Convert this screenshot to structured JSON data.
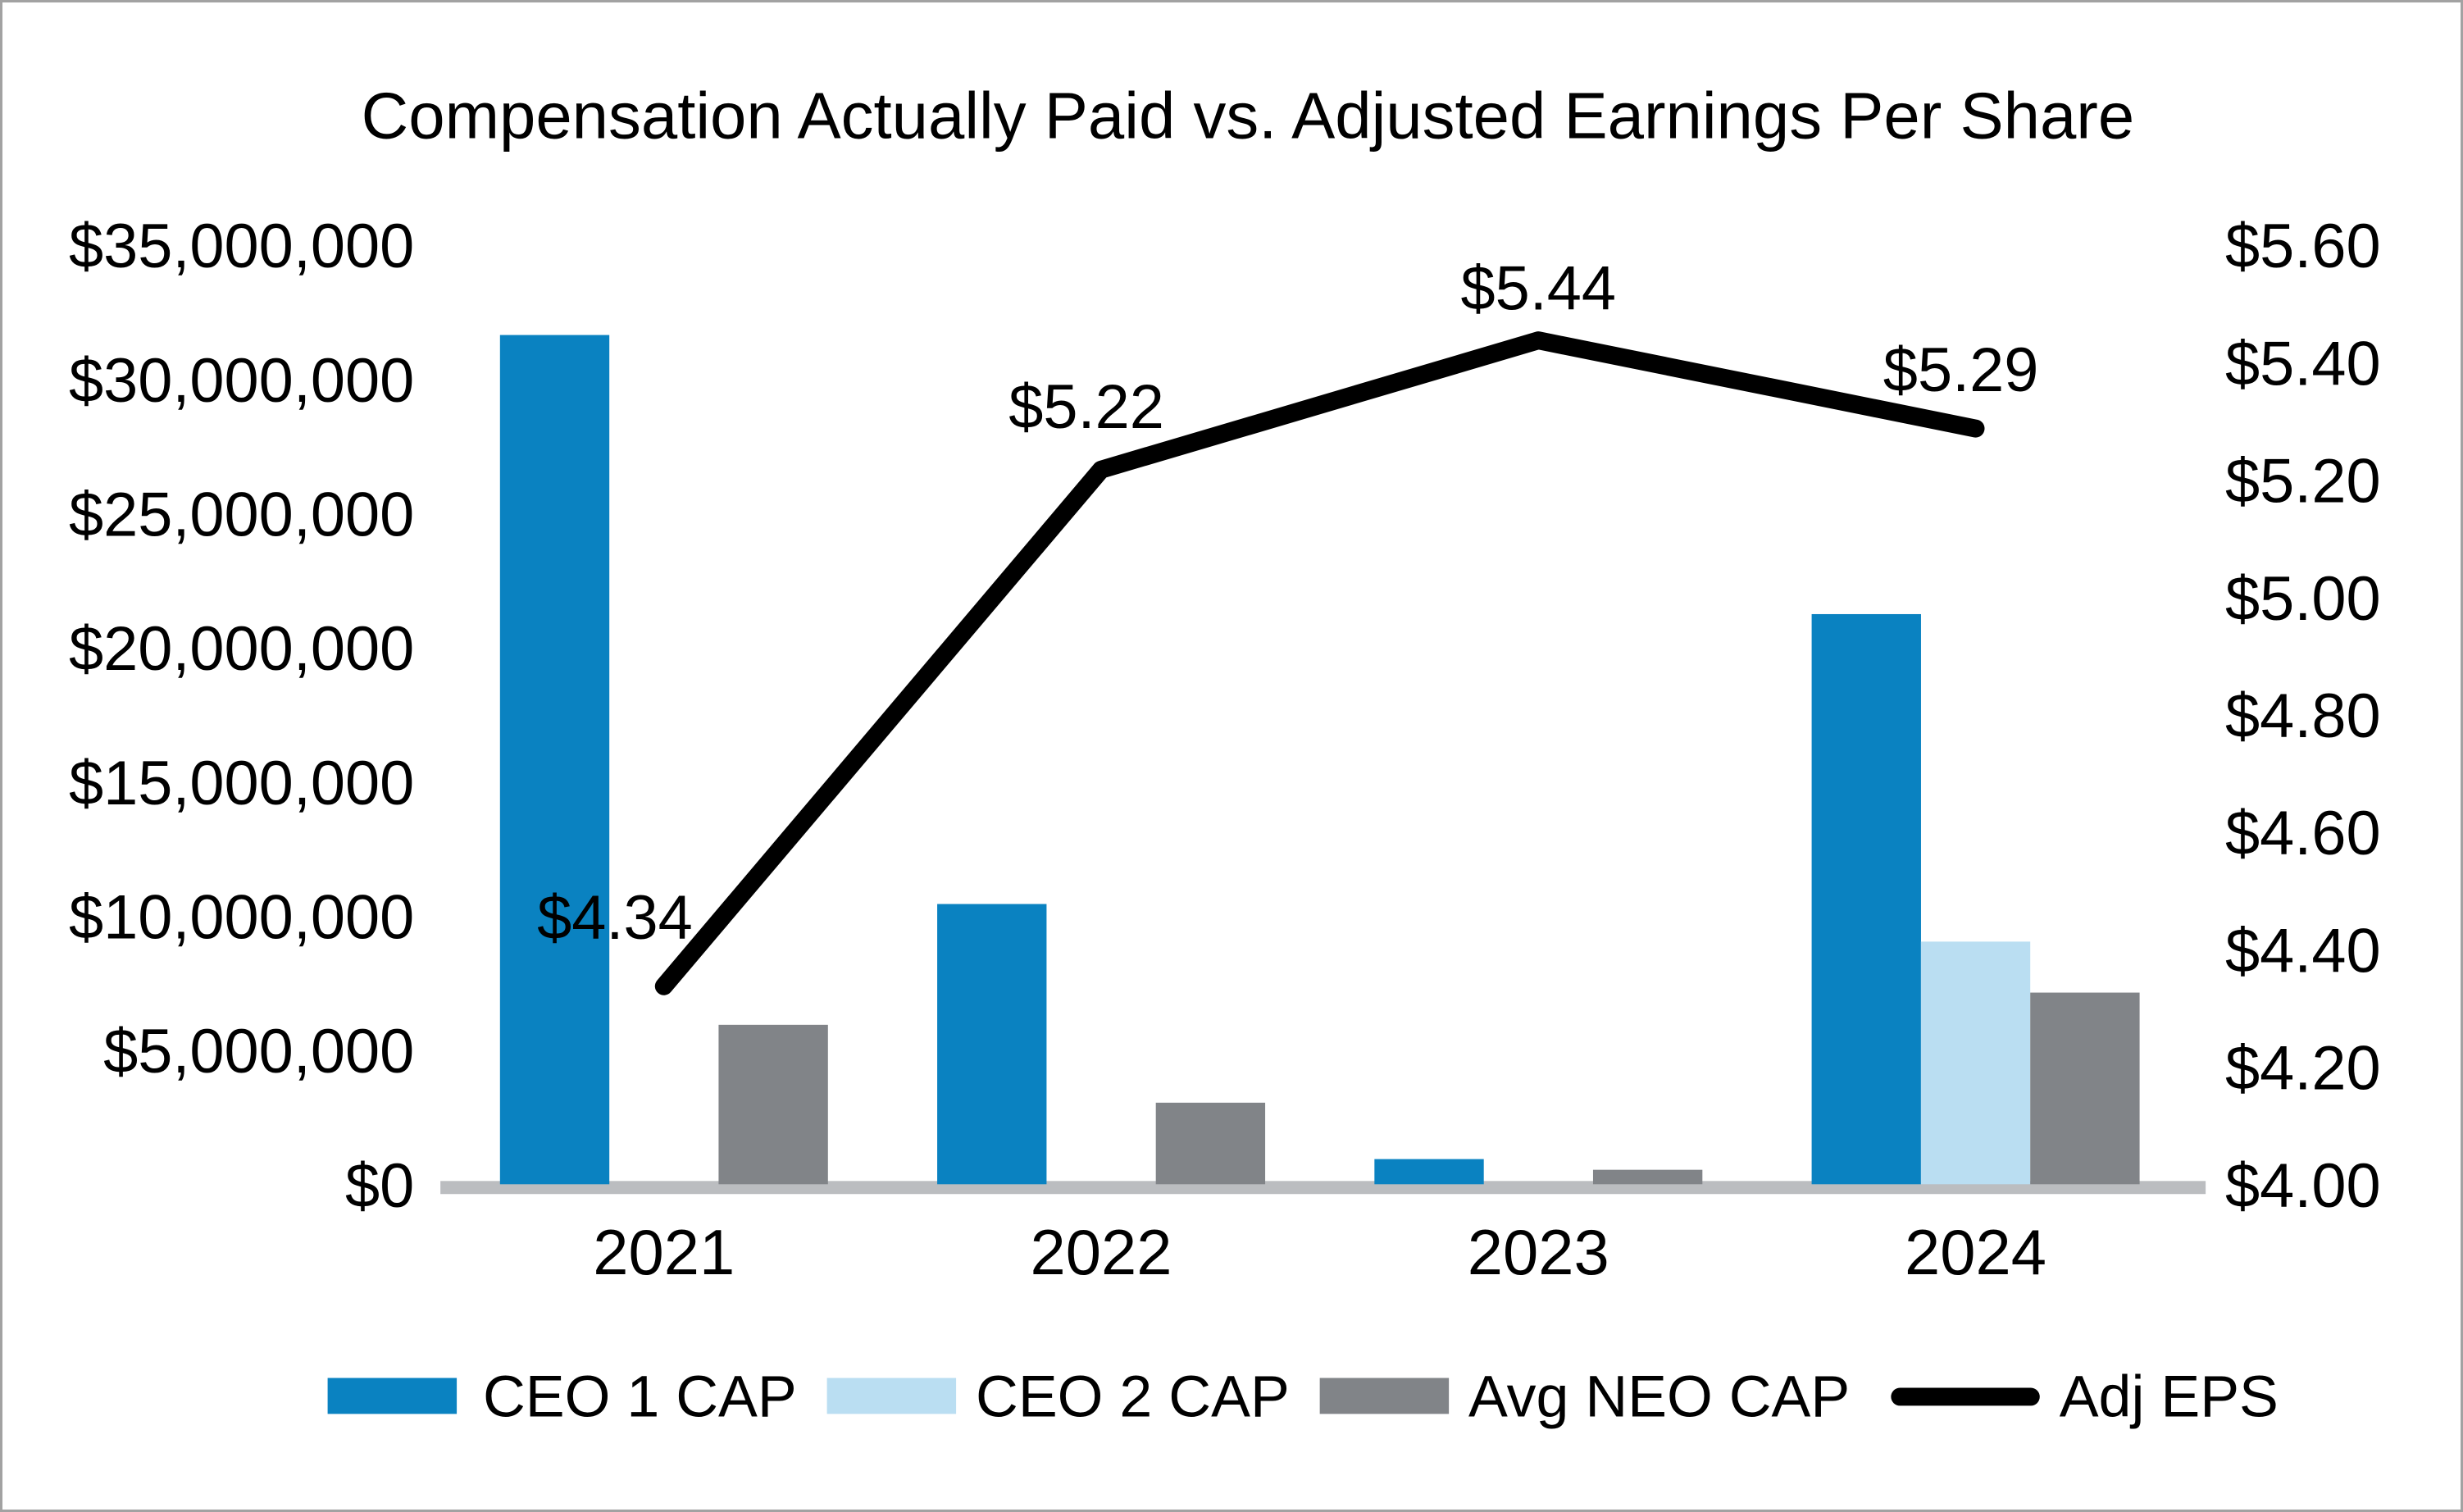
{
  "title": "Compensation Actually Paid vs. Adjusted Earnings Per Share",
  "colors": {
    "ceo1": "#0a82c1",
    "ceo2": "#badef2",
    "neo": "#818488",
    "eps_line": "#000000",
    "axis_baseline": "#bbbdc0",
    "text": "#000000",
    "background": "#ffffff"
  },
  "chart_data": {
    "type": "bar",
    "subtype": "combo-clustered-bar-with-line",
    "title": "Compensation Actually Paid vs. Adjusted Earnings Per Share",
    "categories": [
      "2021",
      "2022",
      "2023",
      "2024"
    ],
    "bar_series": [
      {
        "name": "CEO 1 CAP",
        "key": "ceo1",
        "axis": "left",
        "values": [
          31700000,
          10500000,
          1000000,
          21300000
        ]
      },
      {
        "name": "CEO 2 CAP",
        "key": "ceo2",
        "axis": "left",
        "values": [
          null,
          null,
          null,
          9100000
        ]
      },
      {
        "name": "Avg NEO CAP",
        "key": "neo",
        "axis": "left",
        "values": [
          6000000,
          3100000,
          600000,
          7200000
        ]
      }
    ],
    "line_series": {
      "name": "Adj EPS",
      "key": "eps",
      "axis": "right",
      "values": [
        4.34,
        5.22,
        5.44,
        5.29
      ],
      "point_labels": [
        "$4.34",
        "$5.22",
        "$5.44",
        "$5.29"
      ]
    },
    "left_axis": {
      "min": 0,
      "max": 35000000,
      "step": 5000000,
      "tick_labels": [
        "$35,000,000",
        "$30,000,000",
        "$25,000,000",
        "$20,000,000",
        "$15,000,000",
        "$10,000,000",
        "$5,000,000",
        "$0"
      ]
    },
    "right_axis": {
      "min": 4.0,
      "max": 5.6,
      "step": 0.2,
      "tick_labels": [
        "$5.60",
        "$5.40",
        "$5.20",
        "$5.00",
        "$4.80",
        "$4.60",
        "$4.40",
        "$4.20",
        "$4.00"
      ]
    },
    "legend_position": "bottom",
    "grid": false,
    "legend": [
      {
        "label": "CEO 1 CAP",
        "key": "ceo1",
        "marker": "rect"
      },
      {
        "label": "CEO 2 CAP",
        "key": "ceo2",
        "marker": "rect"
      },
      {
        "label": "Avg NEO CAP",
        "key": "neo",
        "marker": "rect"
      },
      {
        "label": "Adj EPS",
        "key": "eps",
        "marker": "line"
      }
    ]
  }
}
